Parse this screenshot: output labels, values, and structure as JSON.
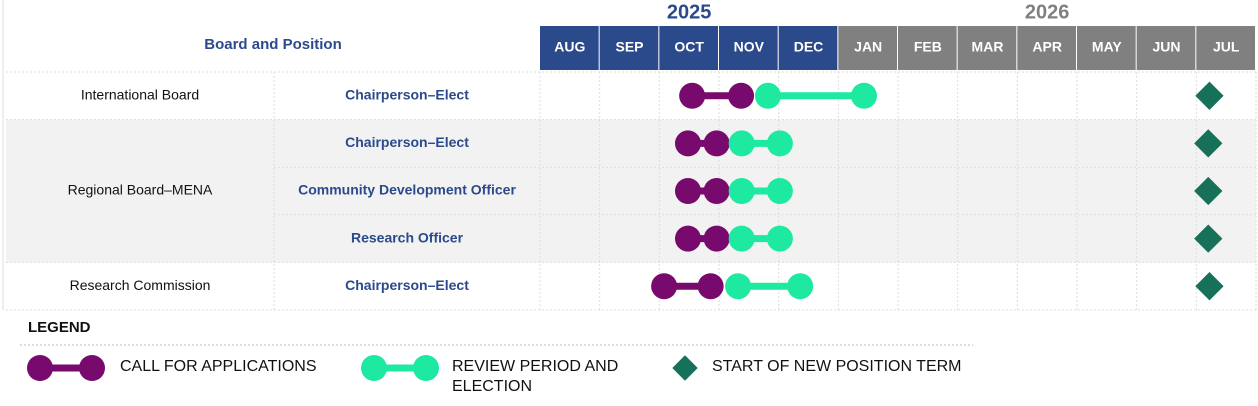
{
  "header": {
    "title": "Board and Position",
    "years": [
      {
        "label": "2025",
        "color": "#2b4a8c"
      },
      {
        "label": "2026",
        "color": "#808080"
      }
    ]
  },
  "months": [
    {
      "label": "AUG",
      "year": 0
    },
    {
      "label": "SEP",
      "year": 0
    },
    {
      "label": "OCT",
      "year": 0
    },
    {
      "label": "NOV",
      "year": 0
    },
    {
      "label": "DEC",
      "year": 0
    },
    {
      "label": "JAN",
      "year": 1
    },
    {
      "label": "FEB",
      "year": 1
    },
    {
      "label": "MAR",
      "year": 1
    },
    {
      "label": "APR",
      "year": 1
    },
    {
      "label": "MAY",
      "year": 1
    },
    {
      "label": "JUN",
      "year": 1
    },
    {
      "label": "JUL",
      "year": 1
    }
  ],
  "groups": [
    {
      "board": "International Board",
      "shaded": false,
      "positions": [
        {
          "position": "Chairperson–Elect",
          "call": [
            2.55,
            3.37
          ],
          "review": [
            3.82,
            5.43
          ],
          "term": 11.22
        }
      ]
    },
    {
      "board": "Regional Board–MENA",
      "shaded": true,
      "positions": [
        {
          "position": "Chairperson–Elect",
          "call": [
            2.48,
            2.96
          ],
          "review": [
            3.38,
            4.02
          ],
          "term": 11.2
        },
        {
          "position": "Community Development Officer",
          "call": [
            2.48,
            2.96
          ],
          "review": [
            3.38,
            4.02
          ],
          "term": 11.2
        },
        {
          "position": "Research Officer",
          "call": [
            2.48,
            2.96
          ],
          "review": [
            3.38,
            4.02
          ],
          "term": 11.2
        }
      ]
    },
    {
      "board": "Research Commission",
      "shaded": false,
      "positions": [
        {
          "position": "Chairperson–Elect",
          "call": [
            2.08,
            2.86
          ],
          "review": [
            3.32,
            4.36
          ],
          "term": 11.22
        }
      ]
    }
  ],
  "legend": {
    "title": "LEGEND",
    "items": [
      {
        "label": "CALL FOR APPLICATIONS",
        "color": "#770a6c"
      },
      {
        "label": "REVIEW PERIOD AND ELECTION",
        "color": "#1de9a0"
      },
      {
        "label": "START OF NEW POSITION TERM",
        "color": "#17705a"
      }
    ]
  }
}
